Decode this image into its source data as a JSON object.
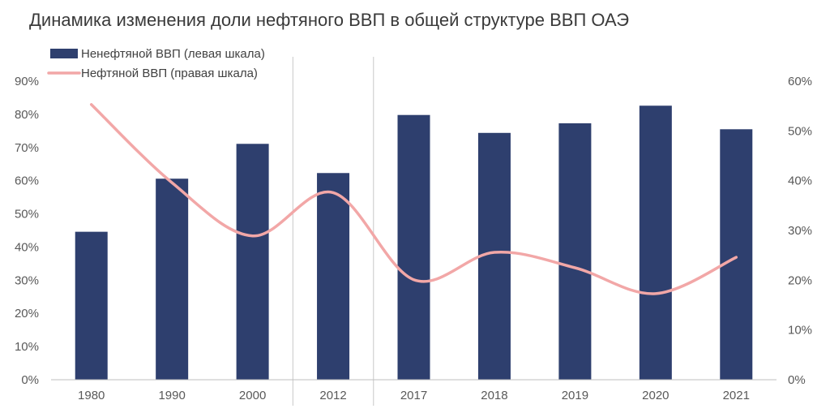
{
  "chart_data": {
    "type": "bar",
    "title": "Динамика изменения доли нефтяного ВВП в общей структуре ВВП ОАЭ",
    "categories": [
      "1980",
      "1990",
      "2000",
      "2012",
      "2017",
      "2018",
      "2019",
      "2020",
      "2021"
    ],
    "series": [
      {
        "name": "Ненефтяной ВВП (левая шкала)",
        "type": "bar",
        "axis": "left",
        "color": "#2e3f6e",
        "values": [
          44.6,
          60.6,
          71.1,
          62.3,
          79.8,
          74.4,
          77.3,
          82.6,
          75.5
        ]
      },
      {
        "name": "Нефтяной ВВП (правая шкала)",
        "type": "line",
        "axis": "right",
        "color": "#f2a7a7",
        "values": [
          55.3,
          39.6,
          28.9,
          37.6,
          20.1,
          25.6,
          22.5,
          17.3,
          24.6
        ]
      }
    ],
    "left_axis": {
      "ylim": [
        0,
        90
      ],
      "ticks": [
        "0%",
        "10%",
        "20%",
        "30%",
        "40%",
        "50%",
        "60%",
        "70%",
        "80%",
        "90%"
      ]
    },
    "right_axis": {
      "ylim": [
        0,
        60
      ],
      "ticks": [
        "0%",
        "10%",
        "20%",
        "30%",
        "40%",
        "50%",
        "60%"
      ]
    },
    "legend": "top-left",
    "grid": false
  }
}
